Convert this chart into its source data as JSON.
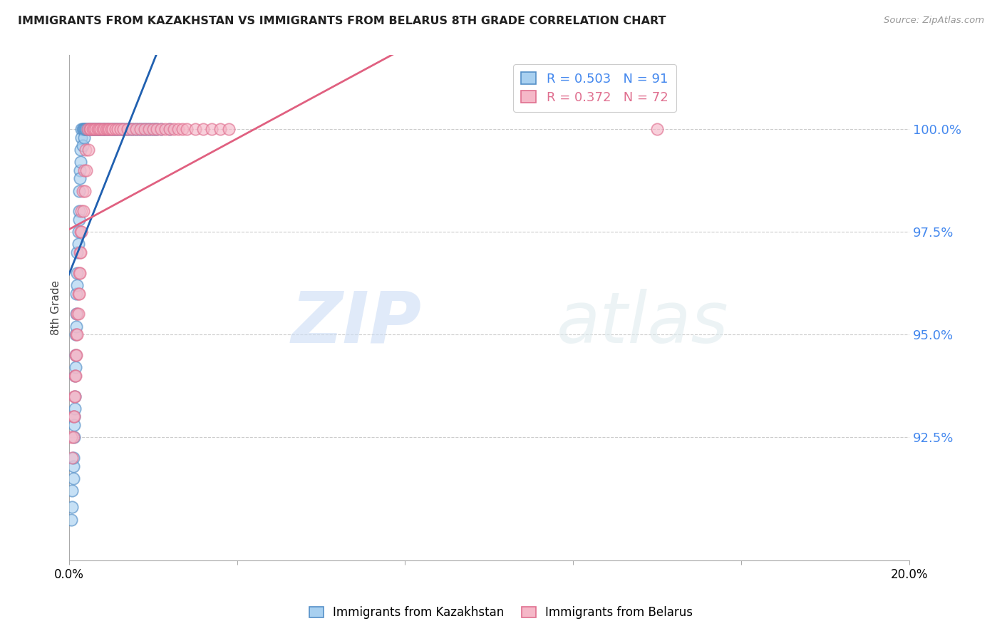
{
  "title": "IMMIGRANTS FROM KAZAKHSTAN VS IMMIGRANTS FROM BELARUS 8TH GRADE CORRELATION CHART",
  "source": "Source: ZipAtlas.com",
  "ylabel": "8th Grade",
  "watermark_zip": "ZIP",
  "watermark_atlas": "atlas",
  "xlim": [
    0.0,
    20.0
  ],
  "ylim": [
    89.5,
    101.8
  ],
  "yticks": [
    92.5,
    95.0,
    97.5,
    100.0
  ],
  "ytick_labels": [
    "92.5%",
    "95.0%",
    "97.5%",
    "100.0%"
  ],
  "legend1_r": "R = 0.503",
  "legend1_n": "N = 91",
  "legend2_r": "R = 0.372",
  "legend2_n": "N = 72",
  "color_kazakhstan": "#a8d0f0",
  "color_kazakhstan_edge": "#5590c8",
  "color_belarus": "#f5b8c8",
  "color_belarus_edge": "#e07090",
  "color_kazakhstan_line": "#2060b0",
  "color_belarus_line": "#e06080",
  "color_yticks": "#4488ee",
  "kaz_x": [
    0.05,
    0.08,
    0.08,
    0.1,
    0.1,
    0.1,
    0.12,
    0.12,
    0.12,
    0.14,
    0.14,
    0.14,
    0.16,
    0.16,
    0.16,
    0.18,
    0.18,
    0.18,
    0.2,
    0.2,
    0.2,
    0.22,
    0.22,
    0.24,
    0.24,
    0.24,
    0.26,
    0.26,
    0.28,
    0.28,
    0.3,
    0.3,
    0.32,
    0.32,
    0.34,
    0.36,
    0.36,
    0.38,
    0.4,
    0.42,
    0.44,
    0.46,
    0.48,
    0.5,
    0.52,
    0.54,
    0.56,
    0.58,
    0.6,
    0.62,
    0.64,
    0.66,
    0.68,
    0.7,
    0.72,
    0.74,
    0.76,
    0.8,
    0.82,
    0.84,
    0.86,
    0.9,
    0.92,
    0.96,
    1.0,
    1.04,
    1.08,
    1.1,
    1.14,
    1.18,
    1.22,
    1.26,
    1.3,
    1.35,
    1.4,
    1.45,
    1.5,
    1.55,
    1.6,
    1.65,
    1.7,
    1.75,
    1.8,
    1.85,
    1.9,
    1.95,
    2.0,
    2.05,
    2.1,
    2.2,
    2.4
  ],
  "kaz_y": [
    90.5,
    91.2,
    90.8,
    91.8,
    92.0,
    91.5,
    92.5,
    93.0,
    92.8,
    93.5,
    93.2,
    94.0,
    94.5,
    94.2,
    95.0,
    95.5,
    95.2,
    96.0,
    96.5,
    96.2,
    97.0,
    97.5,
    97.2,
    98.0,
    97.8,
    98.5,
    99.0,
    98.8,
    99.5,
    99.2,
    100.0,
    99.8,
    100.0,
    99.6,
    100.0,
    100.0,
    99.8,
    100.0,
    100.0,
    100.0,
    100.0,
    100.0,
    100.0,
    100.0,
    100.0,
    100.0,
    100.0,
    100.0,
    100.0,
    100.0,
    100.0,
    100.0,
    100.0,
    100.0,
    100.0,
    100.0,
    100.0,
    100.0,
    100.0,
    100.0,
    100.0,
    100.0,
    100.0,
    100.0,
    100.0,
    100.0,
    100.0,
    100.0,
    100.0,
    100.0,
    100.0,
    100.0,
    100.0,
    100.0,
    100.0,
    100.0,
    100.0,
    100.0,
    100.0,
    100.0,
    100.0,
    100.0,
    100.0,
    100.0,
    100.0,
    100.0,
    100.0,
    100.0,
    100.0,
    100.0,
    100.0
  ],
  "bel_x": [
    0.06,
    0.08,
    0.1,
    0.1,
    0.12,
    0.12,
    0.14,
    0.14,
    0.16,
    0.16,
    0.18,
    0.18,
    0.2,
    0.2,
    0.22,
    0.22,
    0.24,
    0.24,
    0.26,
    0.26,
    0.28,
    0.28,
    0.3,
    0.3,
    0.32,
    0.34,
    0.36,
    0.38,
    0.4,
    0.42,
    0.44,
    0.46,
    0.5,
    0.52,
    0.56,
    0.6,
    0.64,
    0.68,
    0.72,
    0.76,
    0.8,
    0.84,
    0.88,
    0.92,
    0.96,
    1.0,
    1.04,
    1.1,
    1.16,
    1.22,
    1.3,
    1.4,
    1.5,
    1.6,
    1.7,
    1.8,
    1.9,
    2.0,
    2.1,
    2.2,
    2.3,
    2.4,
    2.5,
    2.6,
    2.7,
    2.8,
    3.0,
    3.2,
    3.4,
    3.6,
    3.8,
    14.0
  ],
  "bel_y": [
    92.5,
    92.0,
    93.0,
    92.5,
    93.5,
    93.0,
    94.0,
    93.5,
    94.5,
    94.0,
    95.0,
    94.5,
    95.5,
    95.0,
    96.0,
    95.5,
    96.5,
    96.0,
    97.0,
    96.5,
    97.5,
    97.0,
    98.0,
    97.5,
    98.5,
    98.0,
    99.0,
    98.5,
    99.5,
    99.0,
    100.0,
    99.5,
    100.0,
    100.0,
    100.0,
    100.0,
    100.0,
    100.0,
    100.0,
    100.0,
    100.0,
    100.0,
    100.0,
    100.0,
    100.0,
    100.0,
    100.0,
    100.0,
    100.0,
    100.0,
    100.0,
    100.0,
    100.0,
    100.0,
    100.0,
    100.0,
    100.0,
    100.0,
    100.0,
    100.0,
    100.0,
    100.0,
    100.0,
    100.0,
    100.0,
    100.0,
    100.0,
    100.0,
    100.0,
    100.0,
    100.0,
    100.0
  ]
}
